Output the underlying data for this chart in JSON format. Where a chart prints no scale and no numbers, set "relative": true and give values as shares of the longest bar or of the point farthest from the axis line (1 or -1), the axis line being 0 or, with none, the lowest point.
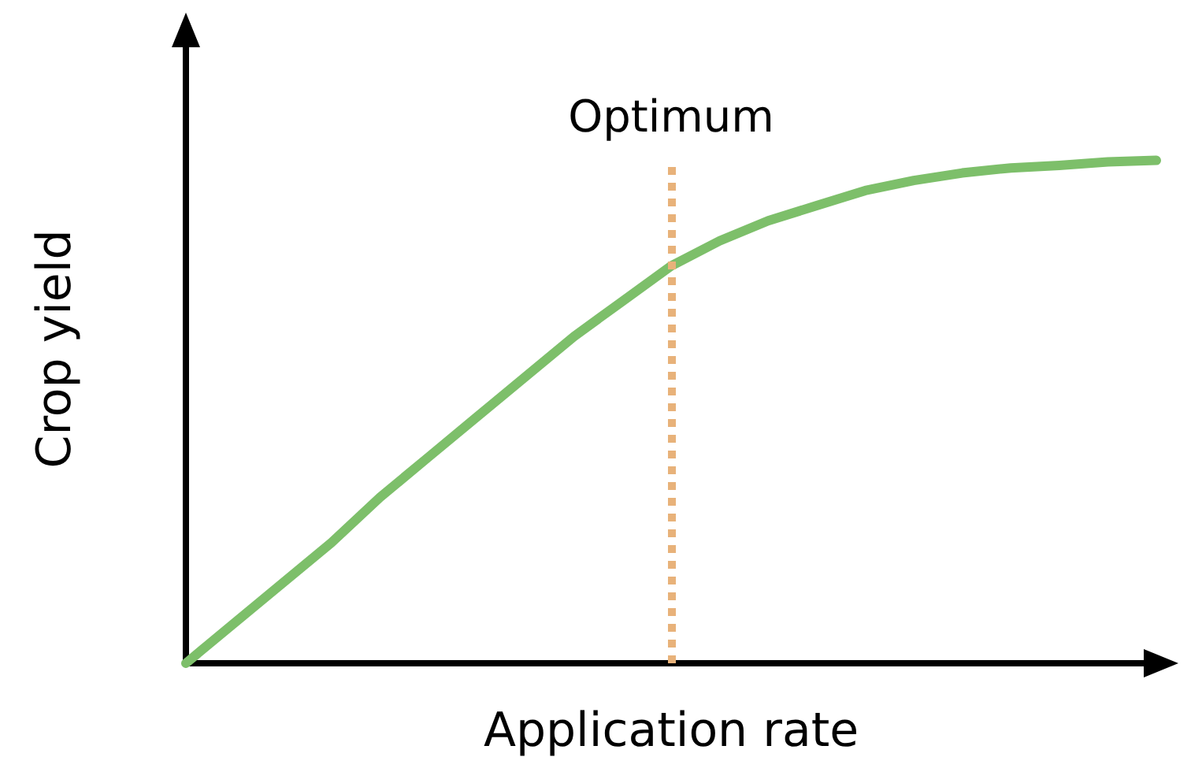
{
  "chart_data": {
    "type": "line",
    "relative": true,
    "xlabel": "Application rate",
    "ylabel": "Crop yield",
    "tick_labels": false,
    "grid": false,
    "marker": "none",
    "line_style": "solid",
    "categories": [
      null,
      null,
      null,
      null,
      null,
      null,
      null,
      null,
      null,
      null,
      null,
      null,
      null,
      null,
      null,
      null,
      null,
      null,
      null,
      null,
      null
    ],
    "series": [
      {
        "color": "#7dbf6a",
        "values": [
          0,
          0.08,
          0.16,
          0.24,
          0.33,
          0.41,
          0.49,
          0.57,
          0.65,
          0.72,
          0.79,
          0.84,
          0.88,
          0.91,
          0.94,
          0.96,
          0.975,
          0.985,
          0.99,
          0.997,
          1.0
        ]
      }
    ],
    "annotations": [
      "Optimum"
    ]
  }
}
